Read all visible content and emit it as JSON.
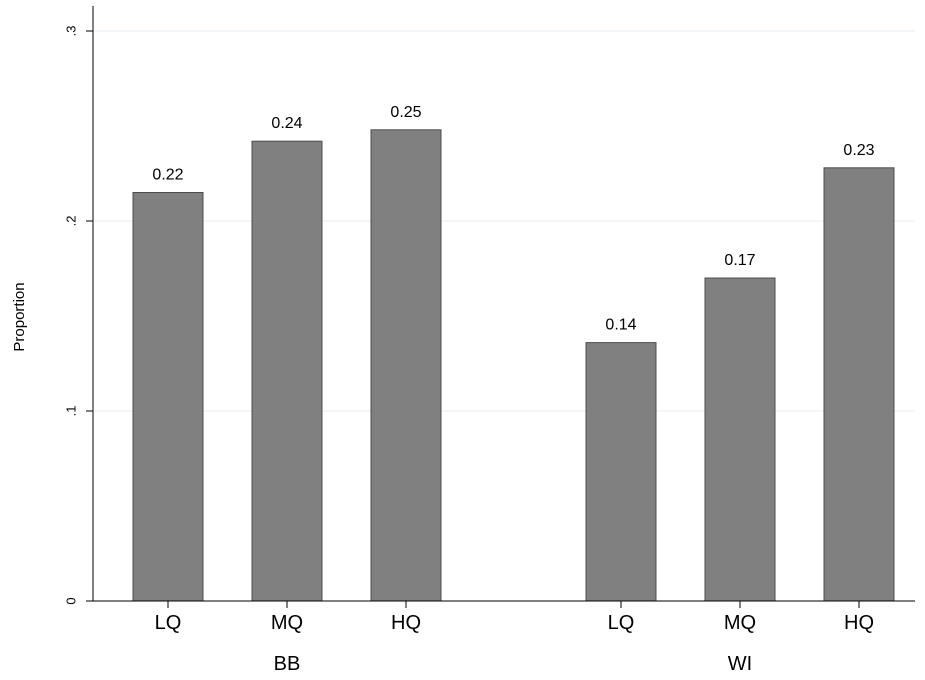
{
  "chart_data": {
    "type": "bar",
    "title": "",
    "ylabel": "Proportion",
    "xlabel": "",
    "ylim": [
      0,
      0.3
    ],
    "yticks": [
      {
        "value": 0,
        "label": "0"
      },
      {
        "value": 0.1,
        "label": ".1"
      },
      {
        "value": 0.2,
        "label": ".2"
      },
      {
        "value": 0.3,
        "label": ".3"
      }
    ],
    "grid": true,
    "legend": "none",
    "bar_color": "#808080",
    "grid_color": "#e4eef0",
    "groups": [
      {
        "name": "BB",
        "categories": [
          "LQ",
          "MQ",
          "HQ"
        ],
        "values": [
          0.215,
          0.242,
          0.248
        ],
        "labels": [
          "0.22",
          "0.24",
          "0.25"
        ]
      },
      {
        "name": "WI",
        "categories": [
          "LQ",
          "MQ",
          "HQ"
        ],
        "values": [
          0.136,
          0.17,
          0.228
        ],
        "labels": [
          "0.14",
          "0.17",
          "0.23"
        ]
      }
    ]
  }
}
